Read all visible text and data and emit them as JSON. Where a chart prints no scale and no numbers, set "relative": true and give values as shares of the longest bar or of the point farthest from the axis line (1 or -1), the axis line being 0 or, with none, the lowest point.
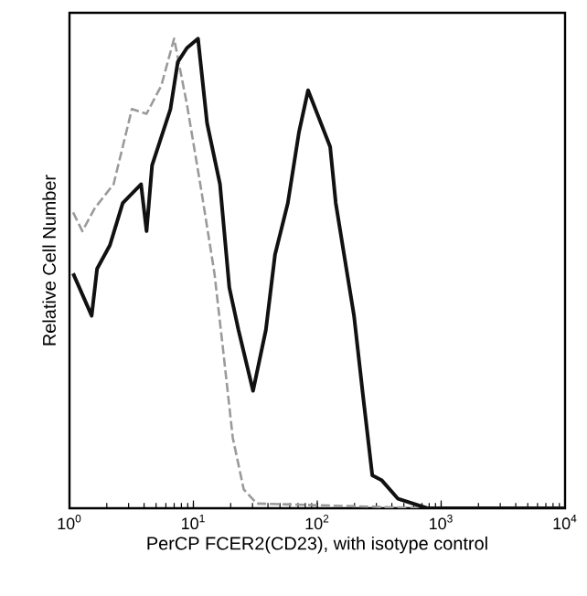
{
  "chart_data": {
    "type": "line",
    "xlabel": "PerCP FCER2(CD23), with isotype control",
    "ylabel": "Relative Cell Number",
    "relative": true,
    "log": "x",
    "xlim": [
      1,
      10000
    ],
    "xticks": [
      {
        "value": 1,
        "label": "10$^{0}$"
      },
      {
        "value": 10,
        "label": "10$^{1}$"
      },
      {
        "value": 100,
        "label": "10$^{2}$"
      },
      {
        "value": 1000,
        "label": "10$^{3}$"
      },
      {
        "value": 10000,
        "label": "10$^{4}$"
      }
    ],
    "series": [
      {
        "color": "#9a9a9a",
        "line_style": "dashed",
        "x": [
          1.07,
          1.27,
          1.61,
          2.27,
          3.19,
          4.19,
          5.51,
          6.99,
          8.87,
          11.7,
          14.8,
          17.5,
          20.8,
          25.5,
          32.5,
          774
        ],
        "values": [
          0.63,
          0.59,
          0.64,
          0.69,
          0.85,
          0.84,
          0.9,
          1.0,
          0.86,
          0.67,
          0.5,
          0.33,
          0.15,
          0.04,
          0.01,
          0
        ]
      },
      {
        "color": "#111111",
        "line_style": "solid",
        "x": [
          1.07,
          1.51,
          1.67,
          2.12,
          2.69,
          3.78,
          4.19,
          4.64,
          6.53,
          7.48,
          8.87,
          10.9,
          12.9,
          16.4,
          19.5,
          23.1,
          30.3,
          38.5,
          45.6,
          57.9,
          71.1,
          84.3,
          127,
          141,
          167,
          198,
          234,
          278,
          330,
          449,
          774,
          10000
        ],
        "values": [
          0.5,
          0.41,
          0.51,
          0.56,
          0.65,
          0.69,
          0.59,
          0.73,
          0.85,
          0.95,
          0.98,
          1.0,
          0.82,
          0.69,
          0.47,
          0.38,
          0.25,
          0.38,
          0.54,
          0.65,
          0.8,
          0.89,
          0.77,
          0.65,
          0.53,
          0.41,
          0.24,
          0.07,
          0.06,
          0.02,
          0,
          0
        ]
      }
    ]
  }
}
